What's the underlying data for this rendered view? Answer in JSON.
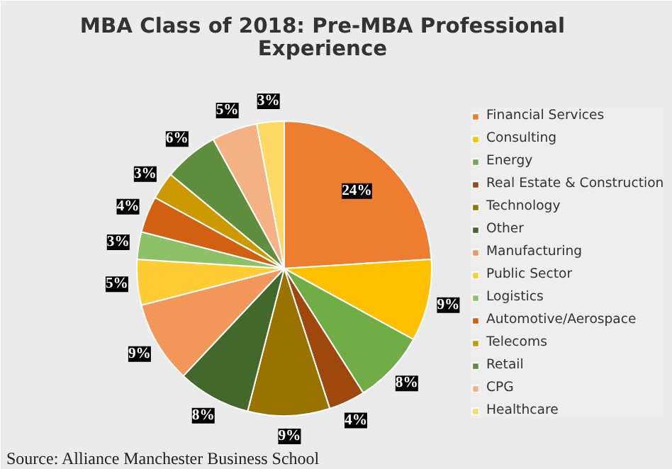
{
  "chart_data": {
    "type": "pie",
    "title": "MBA Class of 2018: Pre-MBA Professional\nExperience",
    "categories": [
      "Financial Services",
      "Consulting",
      "Energy",
      "Real Estate & Construction",
      "Technology",
      "Other",
      "Manufacturing",
      "Public Sector",
      "Logistics",
      "Automotive/Aerospace",
      "Telecoms",
      "Retail",
      "CPG",
      "Healthcare"
    ],
    "values": [
      24,
      9,
      8,
      4,
      9,
      8,
      9,
      5,
      3,
      4,
      3,
      6,
      5,
      3
    ],
    "value_labels": [
      "24%",
      "9%",
      "8%",
      "4%",
      "9%",
      "8%",
      "9%",
      "5%",
      "3%",
      "4%",
      "3%",
      "6%",
      "5%",
      "3%"
    ],
    "colors": [
      "#ed7d31",
      "#ffc000",
      "#70ad47",
      "#9e480e",
      "#997300",
      "#43682b",
      "#f1975a",
      "#ffcd33",
      "#8cc168",
      "#d26012",
      "#cc9a00",
      "#5e8e3e",
      "#f4b183",
      "#ffd966"
    ],
    "legend": "right",
    "annotations": [
      "Source: Alliance Manchester Business School"
    ]
  }
}
